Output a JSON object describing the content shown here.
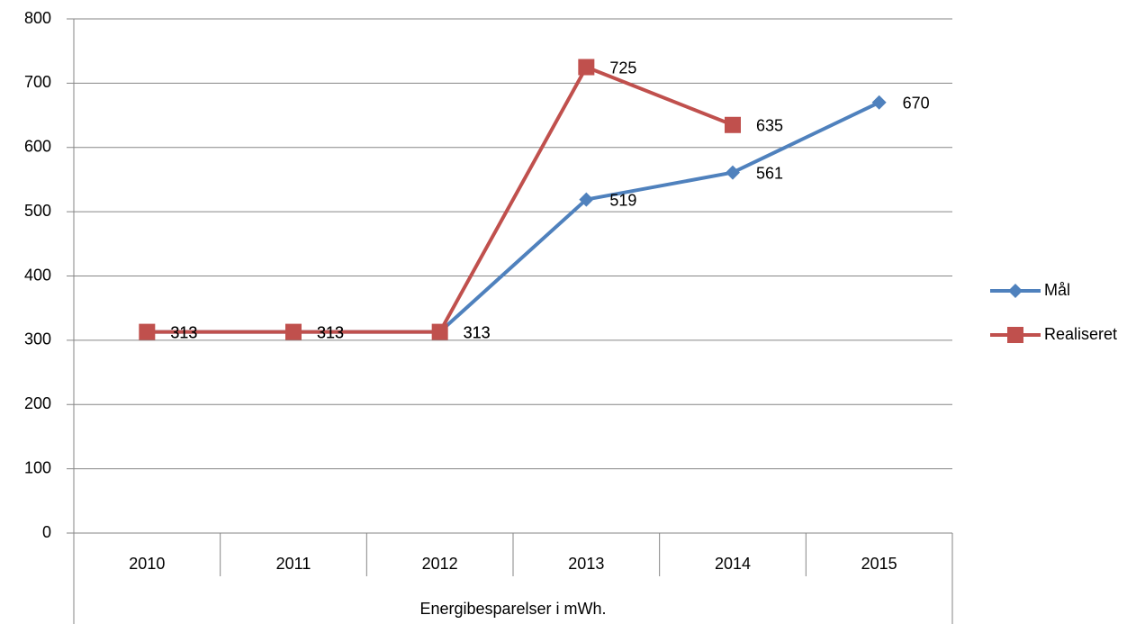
{
  "chart_data": {
    "type": "line",
    "categories": [
      "2010",
      "2011",
      "2012",
      "2013",
      "2014",
      "2015"
    ],
    "series": [
      {
        "name": "Mål",
        "color": "#4f81bd",
        "marker": "diamond",
        "values": [
          313,
          313,
          313,
          519,
          561,
          670
        ]
      },
      {
        "name": "Realiseret",
        "color": "#c0504d",
        "marker": "square",
        "values": [
          313,
          313,
          313,
          725,
          635,
          null
        ]
      }
    ],
    "xlabel": "Energibesparelser i mWh.",
    "ylim": [
      0,
      800
    ],
    "yticks": [
      0,
      100,
      200,
      300,
      400,
      500,
      600,
      700,
      800
    ],
    "grid": true,
    "legend": "right",
    "data_labels": true
  }
}
